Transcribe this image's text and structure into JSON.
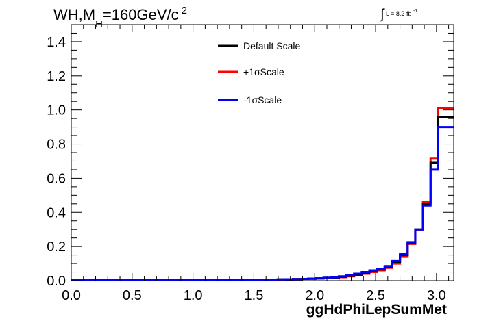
{
  "header": {
    "title_main": "WH,M",
    "title_sub": "H",
    "title_rest": "=160GeV/c",
    "title_sup": "2",
    "lumi_integral": "∫",
    "lumi_text": "L = 8.2 fb",
    "lumi_sup": "-1"
  },
  "chart_data": {
    "type": "line",
    "xlabel": "ggHdPhiLepSumMet",
    "ylabel": "",
    "xlim": [
      0.0,
      3.1416
    ],
    "ylim": [
      0.0,
      1.5
    ],
    "x_ticks": [
      "0.0",
      "0.5",
      "1.0",
      "1.5",
      "2.0",
      "2.5",
      "3.0"
    ],
    "y_ticks": [
      "0.0",
      "0.2",
      "0.4",
      "0.6",
      "0.8",
      "1.0",
      "1.2",
      "1.4"
    ],
    "legend_position": "top-center",
    "grid": false,
    "bin_width": 0.0628,
    "series": [
      {
        "name": "Default Scale",
        "color": "#000000",
        "values": [
          0.003,
          0.003,
          0.003,
          0.003,
          0.003,
          0.003,
          0.003,
          0.003,
          0.003,
          0.003,
          0.003,
          0.003,
          0.003,
          0.003,
          0.003,
          0.003,
          0.003,
          0.003,
          0.004,
          0.004,
          0.004,
          0.004,
          0.005,
          0.005,
          0.005,
          0.006,
          0.006,
          0.007,
          0.008,
          0.009,
          0.01,
          0.011,
          0.013,
          0.015,
          0.018,
          0.022,
          0.028,
          0.035,
          0.045,
          0.055,
          0.065,
          0.08,
          0.11,
          0.15,
          0.22,
          0.3,
          0.45,
          0.69,
          0.96,
          0.96
        ]
      },
      {
        "name": "+1σScale",
        "color": "#ff0000",
        "values": [
          0.003,
          0.003,
          0.003,
          0.003,
          0.003,
          0.003,
          0.003,
          0.003,
          0.003,
          0.003,
          0.003,
          0.003,
          0.003,
          0.003,
          0.003,
          0.003,
          0.003,
          0.003,
          0.004,
          0.004,
          0.004,
          0.004,
          0.005,
          0.005,
          0.005,
          0.006,
          0.006,
          0.007,
          0.008,
          0.009,
          0.01,
          0.011,
          0.012,
          0.014,
          0.017,
          0.02,
          0.025,
          0.03,
          0.04,
          0.05,
          0.06,
          0.075,
          0.1,
          0.14,
          0.215,
          0.3,
          0.46,
          0.715,
          1.01,
          1.01
        ]
      },
      {
        "name": "-1σScale",
        "color": "#0000ff",
        "values": [
          0.003,
          0.003,
          0.003,
          0.003,
          0.003,
          0.003,
          0.003,
          0.003,
          0.003,
          0.003,
          0.003,
          0.003,
          0.003,
          0.003,
          0.003,
          0.003,
          0.003,
          0.003,
          0.004,
          0.004,
          0.004,
          0.004,
          0.005,
          0.005,
          0.005,
          0.006,
          0.006,
          0.007,
          0.008,
          0.009,
          0.01,
          0.012,
          0.014,
          0.017,
          0.02,
          0.025,
          0.032,
          0.04,
          0.05,
          0.06,
          0.07,
          0.085,
          0.115,
          0.155,
          0.225,
          0.3,
          0.44,
          0.65,
          0.9,
          0.9
        ]
      }
    ]
  }
}
